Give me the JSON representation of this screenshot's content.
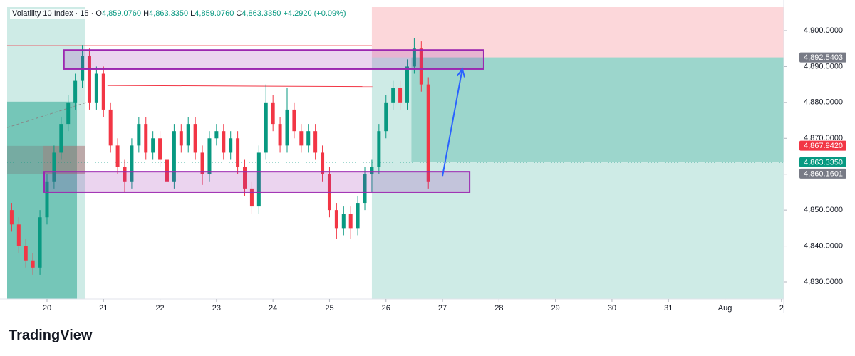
{
  "chart_data": {
    "type": "candlestick",
    "header": {
      "symbol": "Volatility 10 Index · 15 ·",
      "open_key": "O",
      "open": "4,859.0760",
      "high_key": "H",
      "high": "4,863.3350",
      "low_key": "L",
      "low": "4,859.0760",
      "close_key": "C",
      "close": "4,863.3350",
      "change": "+4.2920 (+0.09%)"
    },
    "brand": "TradingView",
    "x": [
      19.375,
      19.5,
      19.625,
      19.75,
      19.875,
      20.0,
      20.125,
      20.25,
      20.375,
      20.5,
      20.625,
      20.75,
      20.875,
      21.0,
      21.125,
      21.25,
      21.375,
      21.5,
      21.625,
      21.75,
      21.875,
      22.0,
      22.125,
      22.25,
      22.375,
      22.5,
      22.625,
      22.75,
      22.875,
      23.0,
      23.125,
      23.25,
      23.375,
      23.5,
      23.625,
      23.75,
      23.875,
      24.0,
      24.125,
      24.25,
      24.375,
      24.5,
      24.625,
      24.75,
      24.875,
      25.0,
      25.125,
      25.25,
      25.375,
      25.5,
      25.625,
      25.75,
      25.875,
      26.0,
      26.125,
      26.25,
      26.375,
      26.5,
      26.625,
      26.75
    ],
    "open": [
      4850,
      4846,
      4840,
      4836,
      4834,
      4848,
      4858,
      4866,
      4874,
      4880,
      4886,
      4893,
      4880,
      4888,
      4878,
      4868,
      4862,
      4858,
      4868,
      4874,
      4866,
      4870,
      4864,
      4858,
      4872,
      4868,
      4874,
      4866,
      4860,
      4870,
      4872,
      4866,
      4870,
      4862,
      4856,
      4851,
      4866,
      4880,
      4874,
      4868,
      4878,
      4872,
      4868,
      4872,
      4866,
      4860,
      4850,
      4845,
      4849,
      4845,
      4852,
      4860,
      4862,
      4872,
      4880,
      4884,
      4880,
      4890,
      4895,
      4885
    ],
    "high": [
      4852,
      4848,
      4842,
      4838,
      4850,
      4860,
      4868,
      4876,
      4882,
      4888,
      4896,
      4895,
      4890,
      4890,
      4880,
      4870,
      4864,
      4870,
      4876,
      4876,
      4872,
      4872,
      4866,
      4874,
      4874,
      4876,
      4876,
      4868,
      4872,
      4874,
      4874,
      4872,
      4872,
      4864,
      4858,
      4868,
      4885,
      4882,
      4876,
      4884,
      4880,
      4874,
      4874,
      4874,
      4868,
      4862,
      4852,
      4851,
      4851,
      4854,
      4862,
      4864,
      4874,
      4882,
      4886,
      4886,
      4892,
      4898,
      4897,
      4887
    ],
    "low": [
      4844,
      4838,
      4834,
      4832,
      4832,
      4846,
      4856,
      4864,
      4872,
      4878,
      4884,
      4878,
      4878,
      4876,
      4866,
      4860,
      4855,
      4856,
      4866,
      4864,
      4864,
      4862,
      4854,
      4856,
      4866,
      4866,
      4864,
      4857,
      4858,
      4868,
      4864,
      4864,
      4860,
      4854,
      4849,
      4849,
      4864,
      4872,
      4866,
      4866,
      4870,
      4866,
      4866,
      4864,
      4858,
      4848,
      4842,
      4843,
      4842,
      4843,
      4850,
      4855,
      4860,
      4870,
      4878,
      4878,
      4878,
      4888,
      4883,
      4856
    ],
    "close": [
      4846,
      4840,
      4836,
      4834,
      4848,
      4858,
      4866,
      4874,
      4880,
      4886,
      4893,
      4880,
      4888,
      4878,
      4868,
      4862,
      4858,
      4868,
      4874,
      4866,
      4870,
      4864,
      4858,
      4872,
      4868,
      4874,
      4866,
      4860,
      4870,
      4872,
      4866,
      4870,
      4862,
      4856,
      4851,
      4866,
      4880,
      4874,
      4868,
      4878,
      4872,
      4868,
      4872,
      4866,
      4860,
      4850,
      4845,
      4849,
      4845,
      4852,
      4860,
      4862,
      4872,
      4880,
      4884,
      4880,
      4890,
      4895,
      4885,
      4858
    ],
    "up_color": "#089981",
    "down_color": "#f23645",
    "xlim": [
      19.294,
      33.04
    ],
    "ylim": [
      4825.24,
      4906.54
    ],
    "xticks": [
      20,
      21,
      22,
      23,
      24,
      25,
      26,
      27,
      28,
      29,
      30,
      31,
      {
        "value": 32,
        "label": "Aug"
      },
      {
        "value": 33,
        "label": "2"
      }
    ],
    "yticks": [
      {
        "value": 4830,
        "label": "4,830.0000"
      },
      {
        "value": 4840,
        "label": "4,840.0000"
      },
      {
        "value": 4850,
        "label": "4,850.0000"
      },
      {
        "value": 4860,
        "label": "4,860.0000"
      },
      {
        "value": 4870,
        "label": "4,870.0000"
      },
      {
        "value": 4880,
        "label": "4,880.0000"
      },
      {
        "value": 4890,
        "label": "4,890.0000"
      },
      {
        "value": 4900,
        "label": "4,900.0000"
      }
    ],
    "shapes": [
      {
        "x": [
          19.294,
          20.68
        ],
        "y": [
          4825.24,
          4906.54
        ],
        "color": "rgba(8,153,129,0.2)"
      },
      {
        "x": [
          19.294,
          20.53
        ],
        "y": [
          4825.24,
          4880.2
        ],
        "color": "rgba(8,153,129,0.45)"
      },
      {
        "x": [
          19.294,
          20.68
        ],
        "y": [
          4860.0,
          4867.9
        ],
        "color": "rgba(120,120,120,0.35)"
      },
      {
        "x": [
          19.93,
          20.68
        ],
        "y": [
          4860.0,
          4867.9
        ],
        "color": "rgba(242,54,69,0.18)"
      },
      {
        "x": [
          25.75,
          33.04
        ],
        "y": [
          4892.5403,
          4906.54
        ],
        "color": "rgba(242,54,69,0.2)"
      },
      {
        "x": [
          25.75,
          33.04
        ],
        "y": [
          4825.24,
          4892.5403
        ],
        "color": "rgba(8,153,129,0.2)"
      },
      {
        "x": [
          26.45,
          33.04
        ],
        "y": [
          4863.335,
          4892.5403
        ],
        "color": "rgba(8,153,129,0.25)"
      }
    ],
    "zones": [
      {
        "x": [
          20.3,
          27.73
        ],
        "y": [
          4889.3,
          4894.6
        ],
        "color": "rgba(156,39,176,0.2)",
        "stroke": "#9c27b0"
      },
      {
        "x": [
          19.95,
          27.48
        ],
        "y": [
          4855.0,
          4860.7
        ],
        "color": "rgba(156,39,176,0.2)",
        "stroke": "#9c27b0"
      }
    ],
    "lines": [
      {
        "x": [
          19.294,
          25.75
        ],
        "y": [
          4895.8,
          4895.8
        ],
        "color": "#f23645"
      },
      {
        "x": [
          21.07,
          25.76
        ],
        "y": [
          4884.7,
          4884.4
        ],
        "color": "#f23645"
      }
    ],
    "arrow": {
      "x": [
        27.0,
        27.35
      ],
      "y": [
        4859.5,
        4889.3
      ],
      "color": "#2962ff"
    },
    "last_price_line": {
      "value": 4863.335,
      "color": "#089981"
    },
    "price_labels": [
      {
        "value": 4892.5403,
        "label": "4,892.5403",
        "color": "#787b86"
      },
      {
        "value": 4867.942,
        "label": "4,867.9420",
        "color": "#f23645"
      },
      {
        "value": 4863.335,
        "label": "4,863.3350",
        "color": "#089981"
      },
      {
        "value": 4860.1601,
        "label": "4,860.1601",
        "color": "#787b86"
      }
    ]
  }
}
